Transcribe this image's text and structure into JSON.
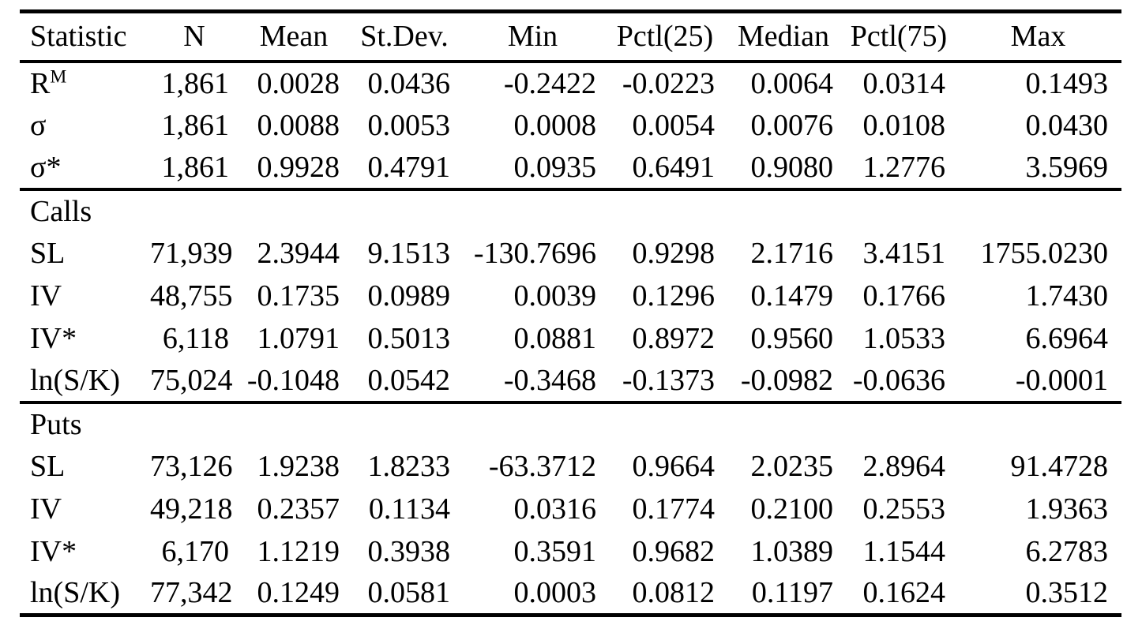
{
  "table": {
    "columns": [
      "Statistic",
      "N",
      "Mean",
      "St.Dev.",
      "Min",
      "Pctl(25)",
      "Median",
      "Pctl(75)",
      "Max"
    ],
    "groups": [
      {
        "section": "",
        "rows": [
          {
            "label": "R",
            "sup": "M",
            "values": [
              "1,861",
              "0.0028",
              "0.0436",
              "-0.2422",
              "-0.0223",
              "0.0064",
              "0.0314",
              "0.1493"
            ]
          },
          {
            "label": "σ",
            "sup": "",
            "values": [
              "1,861",
              "0.0088",
              "0.0053",
              "0.0008",
              "0.0054",
              "0.0076",
              "0.0108",
              "0.0430"
            ]
          },
          {
            "label": "σ*",
            "sup": "",
            "values": [
              "1,861",
              "0.9928",
              "0.4791",
              "0.0935",
              "0.6491",
              "0.9080",
              "1.2776",
              "3.5969"
            ]
          }
        ]
      },
      {
        "section": "Calls",
        "rows": [
          {
            "label": "SL",
            "sup": "",
            "values": [
              "71,939",
              "2.3944",
              "9.1513",
              "-130.7696",
              "0.9298",
              "2.1716",
              "3.4151",
              "1755.0230"
            ]
          },
          {
            "label": "IV",
            "sup": "",
            "values": [
              "48,755",
              "0.1735",
              "0.0989",
              "0.0039",
              "0.1296",
              "0.1479",
              "0.1766",
              "1.7430"
            ]
          },
          {
            "label": "IV*",
            "sup": "",
            "values": [
              "6,118",
              "1.0791",
              "0.5013",
              "0.0881",
              "0.8972",
              "0.9560",
              "1.0533",
              "6.6964"
            ]
          },
          {
            "label": "ln(S/K)",
            "sup": "",
            "values": [
              "75,024",
              "-0.1048",
              "0.0542",
              "-0.3468",
              "-0.1373",
              "-0.0982",
              "-0.0636",
              "-0.0001"
            ]
          }
        ]
      },
      {
        "section": "Puts",
        "rows": [
          {
            "label": "SL",
            "sup": "",
            "values": [
              "73,126",
              "1.9238",
              "1.8233",
              "-63.3712",
              "0.9664",
              "2.0235",
              "2.8964",
              "91.4728"
            ]
          },
          {
            "label": "IV",
            "sup": "",
            "values": [
              "49,218",
              "0.2357",
              "0.1134",
              "0.0316",
              "0.1774",
              "0.2100",
              "0.2553",
              "1.9363"
            ]
          },
          {
            "label": "IV*",
            "sup": "",
            "values": [
              "6,170",
              "1.1219",
              "0.3938",
              "0.3591",
              "0.9682",
              "1.0389",
              "1.1544",
              "6.2783"
            ]
          },
          {
            "label": "ln(S/K)",
            "sup": "",
            "values": [
              "77,342",
              "0.1249",
              "0.0581",
              "0.0003",
              "0.0812",
              "0.1197",
              "0.1624",
              "0.3512"
            ]
          }
        ]
      }
    ]
  }
}
